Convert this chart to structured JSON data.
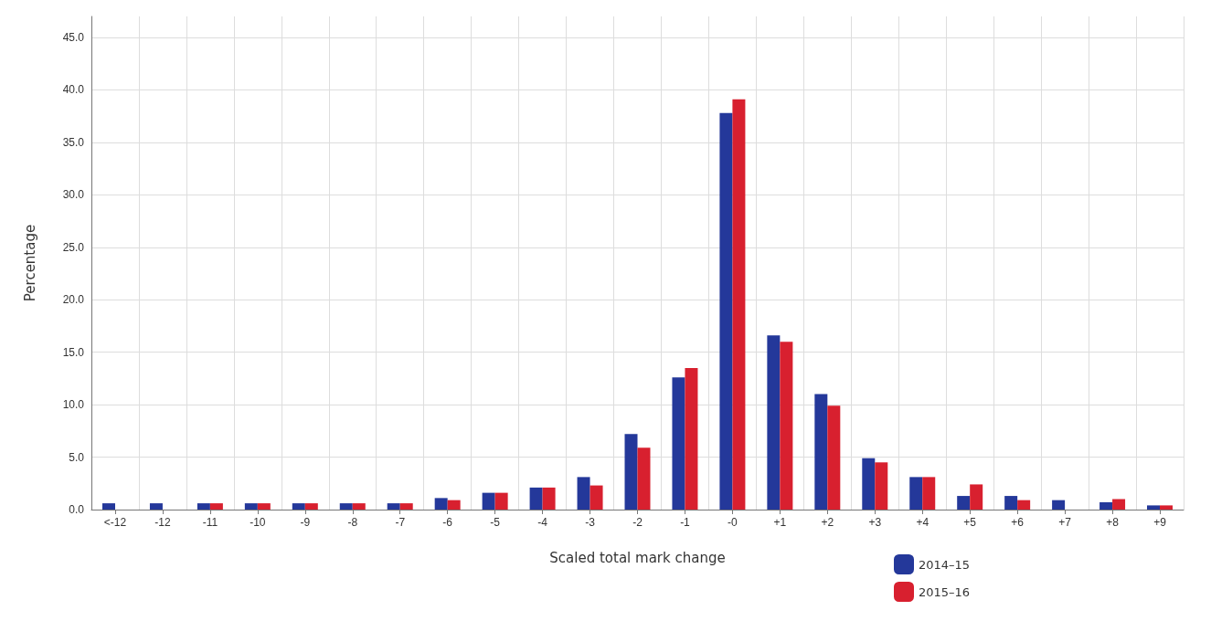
{
  "chart_data": {
    "type": "bar",
    "xlabel": "Scaled total mark change",
    "ylabel": "Percentage",
    "categories": [
      "<-12",
      "-12",
      "-11",
      "-10",
      "-9",
      "-8",
      "-7",
      "-6",
      "-5",
      "-4",
      "-3",
      "-2",
      "-1",
      "-0",
      "+1",
      "+2",
      "+3",
      "+4",
      "+5",
      "+6",
      "+7",
      "+8",
      "+9"
    ],
    "series": [
      {
        "name": "2014–15",
        "color": "#24389a",
        "values": [
          0.6,
          0.6,
          0.6,
          0.6,
          0.6,
          0.6,
          0.6,
          1.1,
          1.6,
          2.1,
          3.1,
          7.2,
          12.6,
          37.8,
          16.6,
          11.0,
          4.9,
          3.1,
          1.3,
          1.3,
          0.9,
          0.7,
          0.4
        ]
      },
      {
        "name": "2015–16",
        "color": "#d8202f",
        "values": [
          null,
          null,
          0.6,
          0.6,
          0.6,
          0.6,
          0.6,
          0.9,
          1.6,
          2.1,
          2.3,
          5.9,
          13.5,
          39.1,
          16.0,
          9.9,
          4.5,
          3.1,
          2.4,
          0.9,
          null,
          1.0,
          0.4
        ]
      }
    ],
    "ylim": [
      0,
      47
    ],
    "yticks": [
      {
        "value": 0,
        "label": "0.0"
      },
      {
        "value": 5,
        "label": "5.0"
      },
      {
        "value": 10,
        "label": "10.0"
      },
      {
        "value": 15,
        "label": "15.0"
      },
      {
        "value": 20,
        "label": "20.0"
      },
      {
        "value": 25,
        "label": "25.0"
      },
      {
        "value": 30,
        "label": "30.0"
      },
      {
        "value": 35,
        "label": "35.0"
      },
      {
        "value": 40,
        "label": "40.0"
      },
      {
        "value": 45,
        "label": "45.0"
      }
    ],
    "grid": true,
    "legend": "bottom right"
  }
}
